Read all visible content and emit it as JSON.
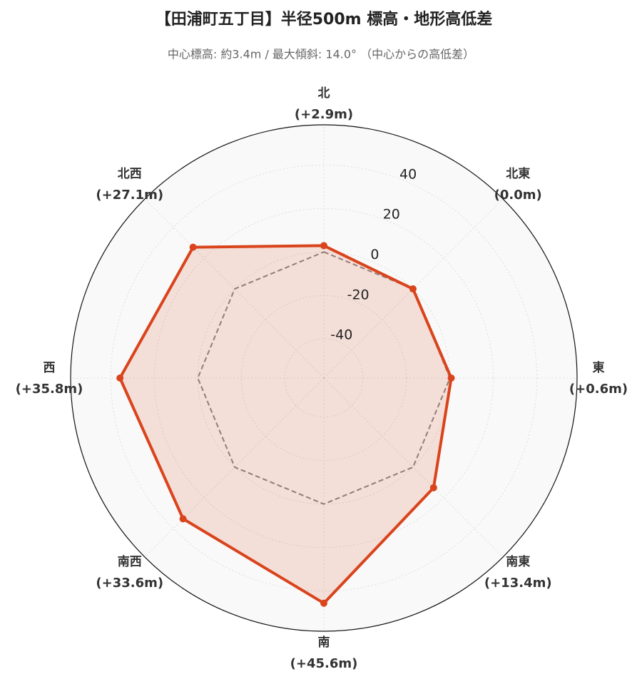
{
  "chart_data": {
    "type": "radar",
    "title": "【田浦町五丁目】半径500m 標高・地形高低差",
    "subtitle": "中心標高: 約3.4m / 最大傾斜: 14.0° （中心からの高低差）",
    "categories": [
      "北",
      "北東",
      "東",
      "南東",
      "南",
      "南西",
      "西",
      "北西"
    ],
    "values": [
      2.9,
      0.0,
      0.6,
      13.4,
      45.6,
      33.6,
      35.8,
      27.1
    ],
    "value_labels": [
      "(+2.9m)",
      "(0.0m)",
      "(+0.6m)",
      "(+13.4m)",
      "(+45.6m)",
      "(+33.6m)",
      "(+35.8m)",
      "(+27.1m)"
    ],
    "color": "#d9441c",
    "baseline": 0,
    "ylim": [
      -58,
      58.5
    ],
    "yticks": [
      -40,
      -20,
      0,
      20,
      40
    ],
    "grid": true
  }
}
